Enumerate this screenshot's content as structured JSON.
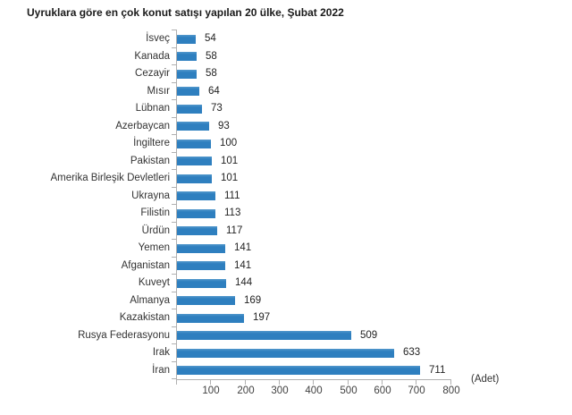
{
  "title": "Uyruklara göre en çok konut satışı yapılan 20 ülke, Şubat 2022",
  "colors": {
    "bar": "#2e7fbf",
    "bar_highlight": "#5398cc",
    "axis": "#b0b0b0",
    "text": "#333333",
    "value_text": "#222222",
    "background": "#ffffff"
  },
  "chart_data": {
    "type": "bar",
    "orientation": "horizontal",
    "title": "Uyruklara göre en çok konut satışı yapılan 20 ülke, Şubat 2022",
    "categories": [
      "İsveç",
      "Kanada",
      "Cezayir",
      "Mısır",
      "Lübnan",
      "Azerbaycan",
      "İngiltere",
      "Pakistan",
      "Amerika Birleşik Devletleri",
      "Ukrayna",
      "Filistin",
      "Ürdün",
      "Yemen",
      "Afganistan",
      "Kuveyt",
      "Almanya",
      "Kazakistan",
      "Rusya Federasyonu",
      "Irak",
      "İran"
    ],
    "values": [
      54,
      58,
      58,
      64,
      73,
      93,
      100,
      101,
      101,
      111,
      113,
      117,
      141,
      141,
      144,
      169,
      197,
      509,
      633,
      711
    ],
    "xlabel": "(Adet)",
    "ylabel": "",
    "xlim": [
      0,
      800
    ],
    "xticks": [
      100,
      200,
      300,
      400,
      500,
      600,
      700,
      800
    ],
    "grid": false,
    "value_labels": true,
    "legend": "none"
  }
}
